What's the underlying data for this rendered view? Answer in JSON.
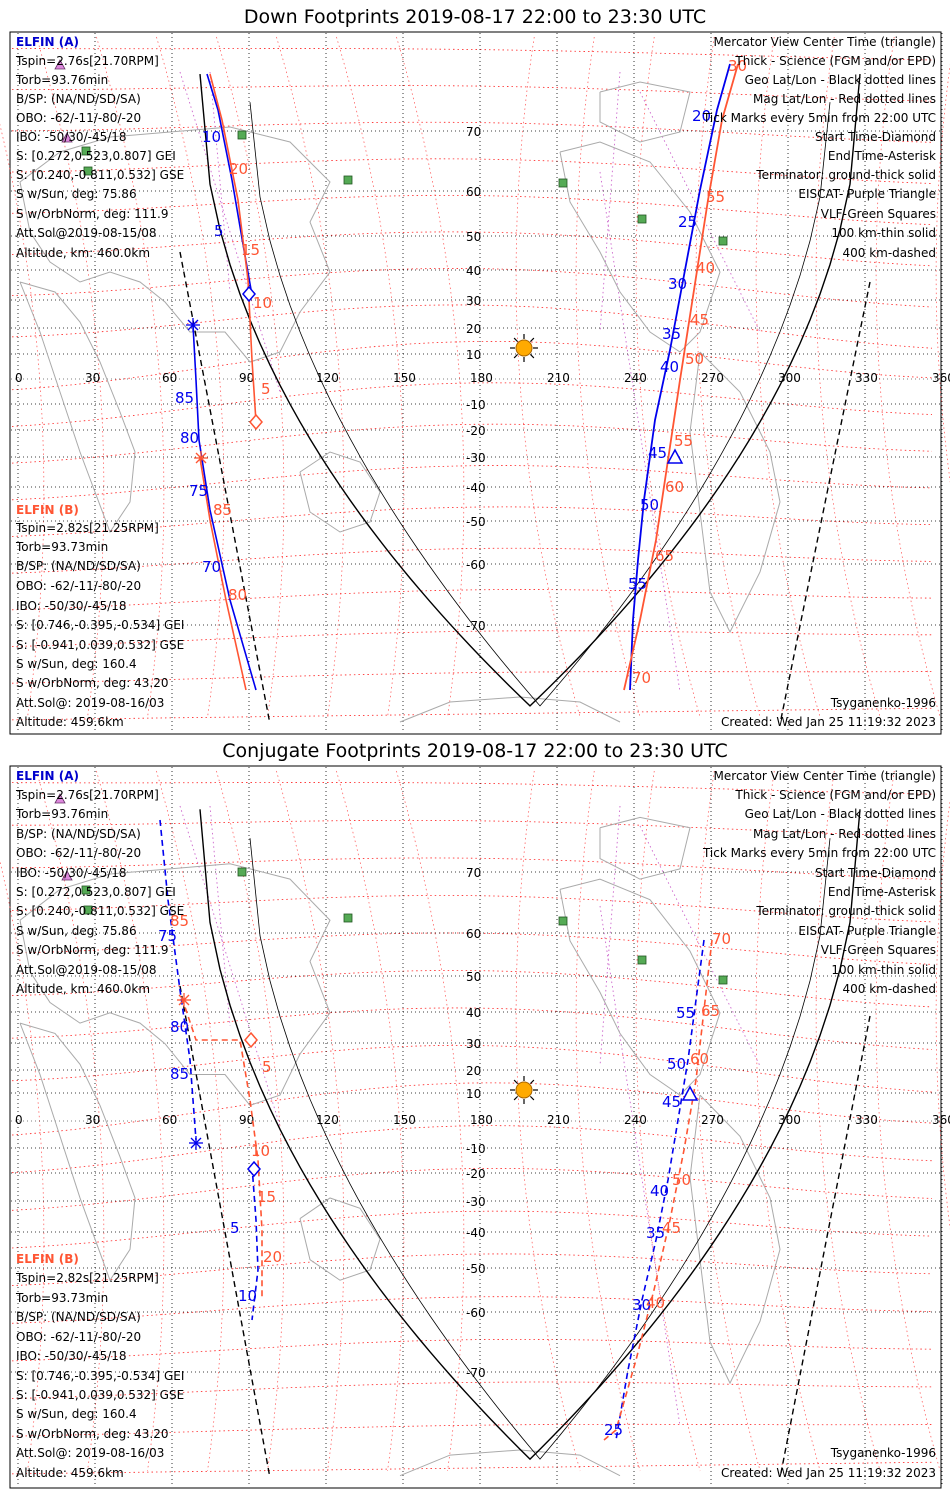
{
  "colors": {
    "elfin_a": "#0000ee",
    "elfin_b": "#ff5533",
    "mag_grid": "#ff2222",
    "geo_grid": "#000000",
    "purple": "#cc66cc",
    "vlf": "#55aa55",
    "sun": "#ffaa00",
    "coast": "#aaaaaa"
  },
  "panels": [
    {
      "title": "Down Footprints 2019-08-17 22:00 to 23:30 UTC",
      "elfin_a_header": "ELFIN (A)",
      "elfin_a_info": [
        "Tspin=2.76s[21.70RPM]",
        "Torb=93.76min",
        "B/SP: (NA/ND/SD/SA)",
        "OBO: -62/-11/-80/-20",
        "IBO: -50/30/-45/18",
        "S: [0.272,0.523,0.807] GEI",
        "S: [0.240,-0.811,0.532] GSE",
        "S w/Sun, deg: 75.86",
        "S w/OrbNorm, deg: 111.9",
        "Att.Sol@2019-08-15/08",
        "Altitude, km: 460.0km"
      ],
      "elfin_b_header": "ELFIN (B)",
      "elfin_b_info": [
        "Tspin=2.82s[21.25RPM]",
        "Torb=93.73min",
        "B/SP: (NA/ND/SD/SA)",
        "OBO: -62/-11/-80/-20",
        "IBO: -50/30/-45/18",
        "S: [0.746,-0.395,-0.534] GEI",
        "S: [-0.941,0.039,0.532] GSE",
        "S w/Sun, deg: 160.4",
        "S w/OrbNorm, deg: 43.20",
        "Att.Sol@: 2019-08-16/03",
        "Altitude: 459.6km"
      ],
      "legend": [
        "Mercator View Center Time (triangle)",
        "Thick - Science (FGM and/or EPD)",
        "Geo Lat/Lon - Black dotted lines",
        "Mag Lat/Lon - Red dotted lines",
        "Tick Marks every 5min from 22:00 UTC",
        "Start Time-Diamond",
        "End Time-Asterisk",
        "Terminator: ground-thick solid",
        "EISCAT- Purple Triangle",
        "VLF-Green Squares",
        "100 km-thin solid",
        "400 km-dashed"
      ],
      "footer_right": "Tsyganenko-1996",
      "created": "Created: Wed Jan 25 11:19:32 2023",
      "lon_labels": [
        "0",
        "30",
        "60",
        "90",
        "120",
        "150",
        "180",
        "210",
        "240",
        "270",
        "300",
        "330",
        "360"
      ],
      "lat_labels": [
        "70",
        "60",
        "50",
        "40",
        "30",
        "20",
        "10",
        "-10",
        "-20",
        "-30",
        "-40",
        "-50",
        "-60",
        "-70"
      ],
      "ticks_a": [
        "10",
        "5",
        "85",
        "80",
        "75",
        "70",
        "20",
        "25",
        "30",
        "35",
        "40",
        "45",
        "50",
        "55"
      ],
      "ticks_b": [
        "20",
        "15",
        "10",
        "5",
        "85",
        "80",
        "30",
        "55",
        "40",
        "45",
        "50",
        "55",
        "60",
        "65",
        "70"
      ]
    },
    {
      "title": "Conjugate Footprints 2019-08-17 22:00 to 23:30 UTC",
      "elfin_a_header": "ELFIN (A)",
      "elfin_a_info": [
        "Tspin=2.76s[21.70RPM]",
        "Torb=93.76min",
        "B/SP: (NA/ND/SD/SA)",
        "OBO: -62/-11/-80/-20",
        "IBO: -50/30/-45/18",
        "S: [0.272,0.523,0.807] GEI",
        "S: [0.240,-0.811,0.532] GSE",
        "S w/Sun, deg: 75.86",
        "S w/OrbNorm, deg: 111.9",
        "Att.Sol@2019-08-15/08",
        "Altitude, km: 460.0km"
      ],
      "elfin_b_header": "ELFIN (B)",
      "elfin_b_info": [
        "Tspin=2.82s[21.25RPM]",
        "Torb=93.73min",
        "B/SP: (NA/ND/SD/SA)",
        "OBO: -62/-11/-80/-20",
        "IBO: -50/30/-45/18",
        "S: [0.746,-0.395,-0.534] GEI",
        "S: [-0.941,0.039,0.532] GSE",
        "S w/Sun, deg: 160.4",
        "S w/OrbNorm, deg: 43.20",
        "Att.Sol@: 2019-08-16/03",
        "Altitude: 459.6km"
      ],
      "legend": [
        "Mercator View Center Time (triangle)",
        "Thick - Science (FGM and/or EPD)",
        "Geo Lat/Lon - Black dotted lines",
        "Mag Lat/Lon - Red dotted lines",
        "Tick Marks every 5min from 22:00 UTC",
        "Start Time-Diamond",
        "End Time-Asterisk",
        "Terminator: ground-thick solid",
        "EISCAT- Purple Triangle",
        "VLF-Green Squares",
        "100 km-thin solid",
        "400 km-dashed"
      ],
      "footer_right": "Tsyganenko-1996",
      "created": "Created: Wed Jan 25 11:19:32 2023",
      "lon_labels": [
        "0",
        "30",
        "60",
        "90",
        "120",
        "150",
        "180",
        "210",
        "240",
        "270",
        "300",
        "330",
        "360"
      ],
      "lat_labels": [
        "70",
        "60",
        "50",
        "40",
        "30",
        "20",
        "10",
        "-10",
        "-20",
        "-30",
        "-40",
        "-50",
        "-60",
        "-70"
      ],
      "ticks_a": [
        "75",
        "80",
        "85",
        "5",
        "10",
        "55",
        "50",
        "45",
        "40",
        "35",
        "30",
        "25"
      ],
      "ticks_b": [
        "85",
        "5",
        "10",
        "15",
        "20",
        "70",
        "65",
        "60",
        "50",
        "45",
        "40"
      ]
    }
  ]
}
